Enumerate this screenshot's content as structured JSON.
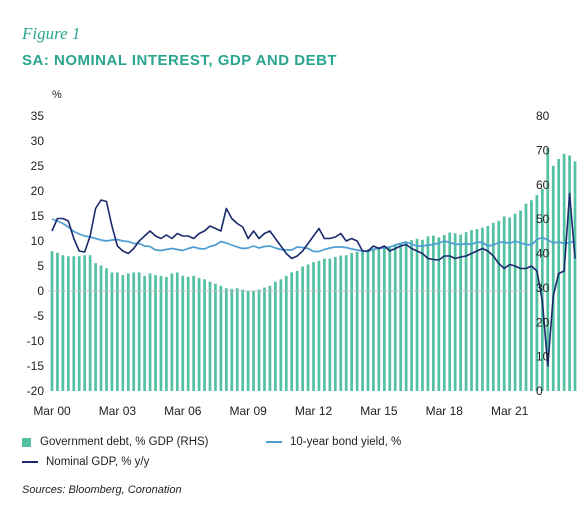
{
  "figure_label": "Figure 1",
  "title": "SA: NOMINAL INTEREST, GDP AND DEBT",
  "source": "Sources: Bloomberg, Coronation",
  "colors": {
    "accent": "#2aa58f",
    "debt": "#54c0a4",
    "bond": "#4e9dd3",
    "gdp": "#1a2a6c"
  },
  "chart_data": {
    "type": "bar",
    "left_axis": {
      "unit": "%",
      "ylim": [
        -20,
        35
      ],
      "ticks": [
        35,
        30,
        25,
        20,
        15,
        10,
        5,
        0,
        -5,
        -10,
        -15,
        -20
      ]
    },
    "right_axis": {
      "ylim": [
        0,
        80
      ],
      "ticks": [
        80,
        70,
        60,
        50,
        40,
        30,
        20,
        10,
        0
      ]
    },
    "x_start": 2000.0,
    "x_end": 2021.75,
    "x_ticks": [
      {
        "label": "Mar 00",
        "x": 2000.0
      },
      {
        "label": "Mar 03",
        "x": 2003.0
      },
      {
        "label": "Mar 06",
        "x": 2006.0
      },
      {
        "label": "Mar 09",
        "x": 2009.0
      },
      {
        "label": "Mar 12",
        "x": 2012.0
      },
      {
        "label": "Mar 15",
        "x": 2015.0
      },
      {
        "label": "Mar 18",
        "x": 2018.0
      },
      {
        "label": "Mar 21",
        "x": 2021.0
      }
    ],
    "grid": false,
    "legend": [
      {
        "label": "Government debt, % GDP (RHS)",
        "kind": "box",
        "color": "#54c0a4"
      },
      {
        "label": "10-year bond yield, %",
        "kind": "line",
        "color": "#4e9dd3"
      },
      {
        "label": "Nominal GDP, % y/y",
        "kind": "line",
        "color": "#1a2a6c"
      }
    ],
    "series": [
      {
        "id": "debt",
        "axis": "right",
        "type": "bar",
        "start": 2000.0,
        "step": 0.25,
        "values": [
          40.7,
          40.2,
          39.5,
          39.2,
          39.2,
          39.2,
          39.5,
          39.5,
          37.2,
          36.5,
          35.7,
          34.5,
          34.5,
          33.7,
          34.2,
          34.5,
          34.5,
          33.5,
          34.2,
          33.7,
          33.5,
          33.2,
          34.2,
          34.5,
          33.5,
          33.2,
          33.5,
          32.9,
          32.5,
          31.8,
          31.2,
          30.6,
          29.9,
          29.7,
          29.9,
          29.5,
          29.2,
          29.2,
          29.5,
          30.1,
          30.6,
          31.8,
          32.5,
          33.5,
          34.5,
          34.9,
          36.2,
          36.8,
          37.5,
          37.9,
          38.5,
          38.5,
          39.0,
          39.4,
          39.5,
          40.2,
          40.5,
          40.9,
          41.2,
          41.5,
          41.8,
          42.0,
          42.0,
          42.6,
          43.0,
          43.5,
          43.9,
          44.3,
          44.0,
          45.0,
          45.2,
          44.7,
          45.4,
          46.1,
          45.9,
          45.5,
          46.2,
          46.8,
          47.1,
          47.5,
          48.0,
          48.9,
          49.5,
          50.8,
          50.5,
          51.6,
          52.5,
          54.5,
          55.5,
          57.0,
          58.8,
          70.7,
          65.5,
          67.5,
          69.0,
          68.5,
          66.8
        ]
      },
      {
        "id": "bond",
        "axis": "left",
        "type": "line",
        "start": 2000.0,
        "step": 0.25,
        "values": [
          14.4,
          14.0,
          13.5,
          12.8,
          11.9,
          11.4,
          11.0,
          10.8,
          10.5,
          10.2,
          10.0,
          10.2,
          10.3,
          10.0,
          9.9,
          9.5,
          9.5,
          9.0,
          8.9,
          8.2,
          8.1,
          8.3,
          8.5,
          8.3,
          8.1,
          8.5,
          8.8,
          8.5,
          8.4,
          8.9,
          9.2,
          9.9,
          9.6,
          9.2,
          8.8,
          8.5,
          8.6,
          9.0,
          8.6,
          8.9,
          9.0,
          8.6,
          8.3,
          8.2,
          8.2,
          8.8,
          8.7,
          8.5,
          7.9,
          7.9,
          8.3,
          8.6,
          8.8,
          8.8,
          8.7,
          8.4,
          8.2,
          8.0,
          7.9,
          8.3,
          8.6,
          8.6,
          8.8,
          9.2,
          9.5,
          9.8,
          9.4,
          9.0,
          9.0,
          9.2,
          9.3,
          9.6,
          10.0,
          9.7,
          9.4,
          9.3,
          9.5,
          9.3,
          9.8,
          9.7,
          9.0,
          9.2,
          9.7,
          9.8,
          9.5,
          10.0,
          9.6,
          9.3,
          9.2,
          10.3,
          10.7,
          10.2,
          9.6,
          9.8,
          9.5,
          9.7,
          9.9
        ]
      },
      {
        "id": "gdp",
        "axis": "left",
        "type": "line",
        "start": 2000.0,
        "step": 0.25,
        "values": [
          12.0,
          14.5,
          14.5,
          14.0,
          10.5,
          8.0,
          7.8,
          11.0,
          16.5,
          18.2,
          17.9,
          13.0,
          9.0,
          8.0,
          7.5,
          8.5,
          10.0,
          11.0,
          12.0,
          11.0,
          10.5,
          11.2,
          10.5,
          11.5,
          11.0,
          11.0,
          10.5,
          11.5,
          12.0,
          13.0,
          12.5,
          12.0,
          16.5,
          14.5,
          13.5,
          12.8,
          10.5,
          12.0,
          10.5,
          11.5,
          12.0,
          10.5,
          9.0,
          7.5,
          6.5,
          7.0,
          8.0,
          9.5,
          11.0,
          12.5,
          10.5,
          10.5,
          10.8,
          11.5,
          10.0,
          10.5,
          10.0,
          8.0,
          8.0,
          9.0,
          8.5,
          9.0,
          8.0,
          8.5,
          9.0,
          9.3,
          8.5,
          8.0,
          7.5,
          6.5,
          6.3,
          6.2,
          7.0,
          7.0,
          6.5,
          6.8,
          7.0,
          7.5,
          8.0,
          8.5,
          8.0,
          7.0,
          5.5,
          4.5,
          5.3,
          5.0,
          4.5,
          4.5,
          5.0,
          4.0,
          -2.0,
          -15.0,
          -1.0,
          3.5,
          4.0,
          19.5,
          6.5
        ]
      }
    ]
  }
}
